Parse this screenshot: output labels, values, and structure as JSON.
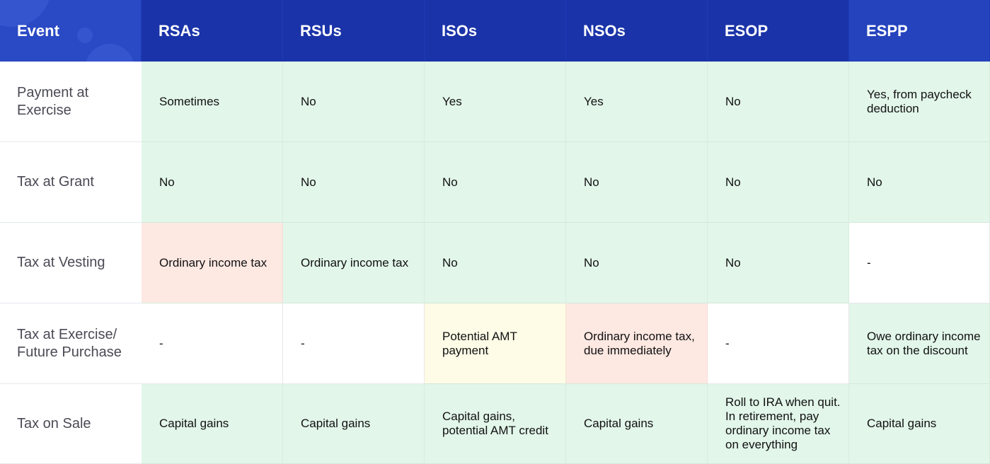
{
  "header": {
    "event": "Event",
    "rsas": "RSAs",
    "rsus": "RSUs",
    "isos": "ISOs",
    "nsos": "NSOs",
    "esop": "ESOP",
    "espp": "ESPP"
  },
  "rows": [
    {
      "label": "Payment at Exercise",
      "cells": [
        {
          "text": "Sometimes",
          "tone": "green"
        },
        {
          "text": "No",
          "tone": "green"
        },
        {
          "text": "Yes",
          "tone": "green"
        },
        {
          "text": "Yes",
          "tone": "green"
        },
        {
          "text": "No",
          "tone": "green"
        },
        {
          "text": "Yes, from paycheck deduction",
          "tone": "green"
        }
      ]
    },
    {
      "label": "Tax at Grant",
      "cells": [
        {
          "text": "No",
          "tone": "green"
        },
        {
          "text": "No",
          "tone": "green"
        },
        {
          "text": "No",
          "tone": "green"
        },
        {
          "text": "No",
          "tone": "green"
        },
        {
          "text": "No",
          "tone": "green"
        },
        {
          "text": "No",
          "tone": "green"
        }
      ]
    },
    {
      "label": "Tax at Vesting",
      "cells": [
        {
          "text": "Ordinary income tax",
          "tone": "red"
        },
        {
          "text": "Ordinary income tax",
          "tone": "green"
        },
        {
          "text": "No",
          "tone": "green"
        },
        {
          "text": "No",
          "tone": "green"
        },
        {
          "text": "No",
          "tone": "green"
        },
        {
          "text": "-",
          "tone": "white"
        }
      ]
    },
    {
      "label": "Tax at Exercise/ Future Purchase",
      "cells": [
        {
          "text": "-",
          "tone": "white"
        },
        {
          "text": "-",
          "tone": "white"
        },
        {
          "text": "Potential AMT payment",
          "tone": "yellow"
        },
        {
          "text": "Ordinary income tax, due immediately",
          "tone": "red"
        },
        {
          "text": "-",
          "tone": "white"
        },
        {
          "text": "Owe ordinary income tax on the discount",
          "tone": "green"
        }
      ]
    },
    {
      "label": "Tax on Sale",
      "cells": [
        {
          "text": "Capital gains",
          "tone": "green"
        },
        {
          "text": "Capital gains",
          "tone": "green"
        },
        {
          "text": "Capital gains, potential AMT credit",
          "tone": "green"
        },
        {
          "text": "Capital gains",
          "tone": "green"
        },
        {
          "text": "Roll to IRA when quit. In retirement, pay ordinary income tax on everything",
          "tone": "green"
        },
        {
          "text": "Capital gains",
          "tone": "green"
        }
      ]
    }
  ],
  "colors": {
    "header_bg": "#1a33a8",
    "green": "#e2f6ea",
    "red": "#fde8e2",
    "yellow": "#fefbe6"
  }
}
